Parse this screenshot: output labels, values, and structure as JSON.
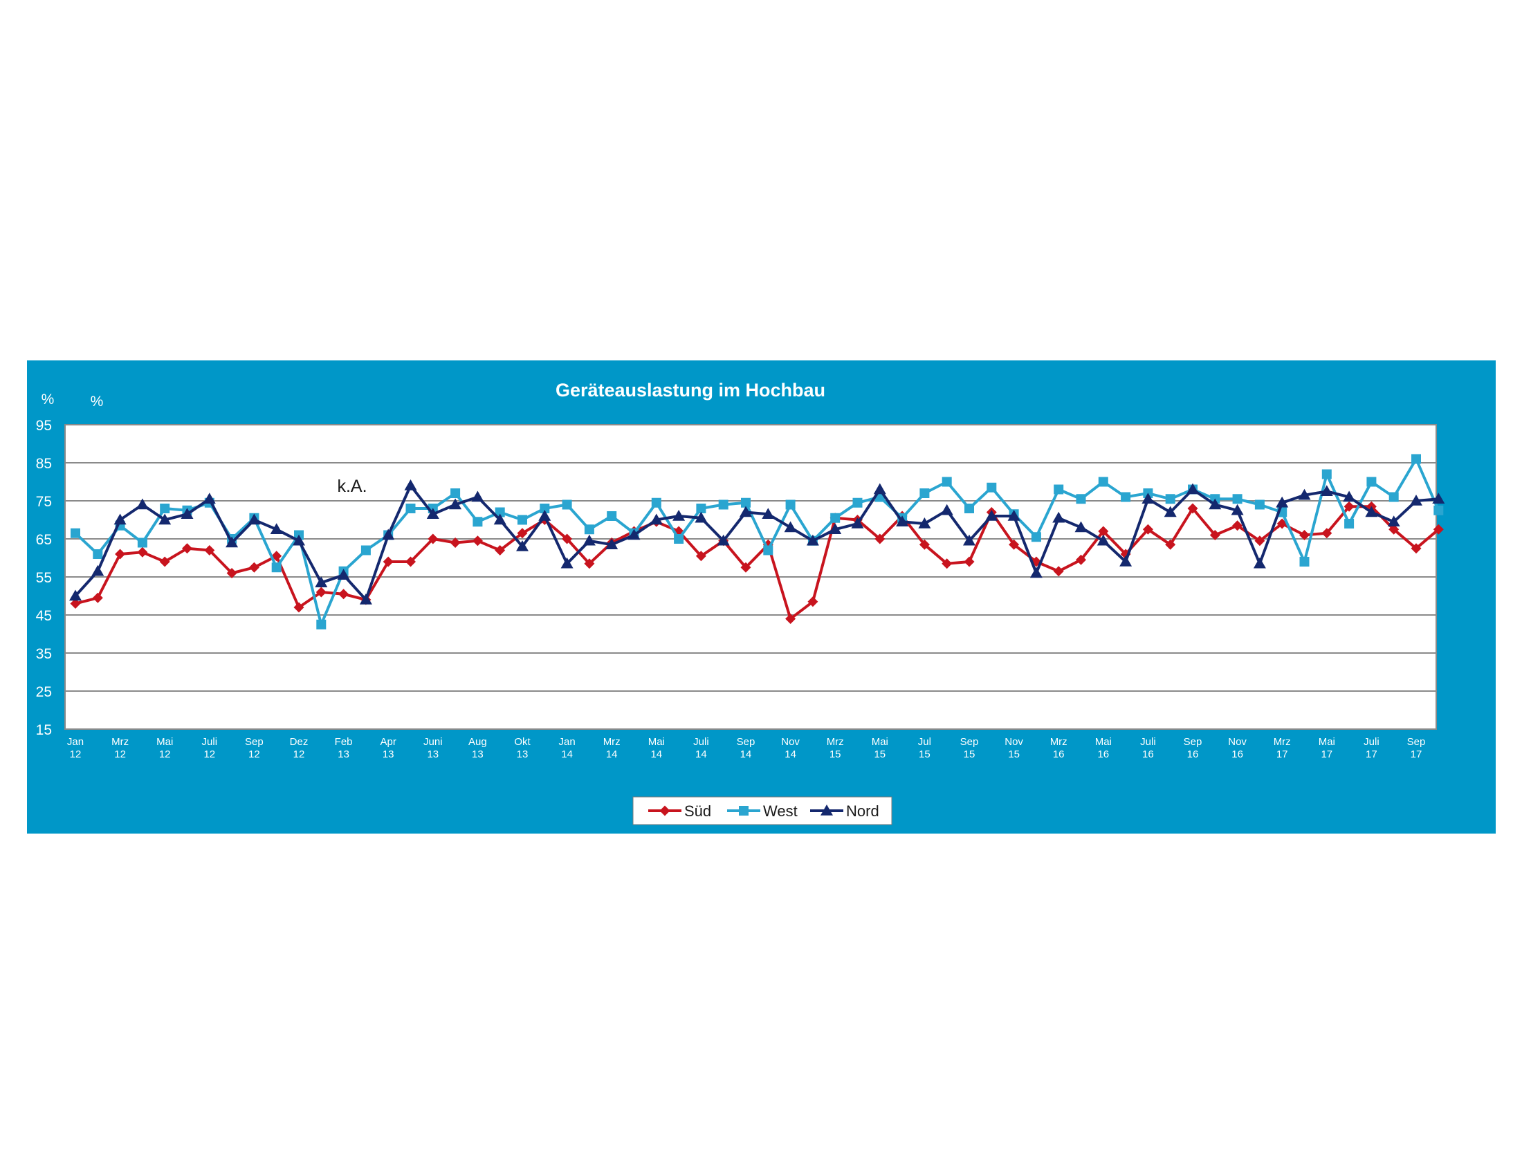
{
  "chart_data": {
    "type": "line",
    "title": "Geräteauslastung im Hochbau",
    "unit_labels": [
      "%",
      "%"
    ],
    "annotation": "k.A.",
    "ylim": [
      15,
      95
    ],
    "y_ticks": [
      15,
      25,
      35,
      45,
      55,
      65,
      75,
      85,
      95
    ],
    "grid": true,
    "legend_position": "bottom-center",
    "x_tick_labels": [
      [
        "Jan",
        "12"
      ],
      [
        "Mrz",
        "12"
      ],
      [
        "Mai",
        "12"
      ],
      [
        "Juli",
        "12"
      ],
      [
        "Sep",
        "12"
      ],
      [
        "Dez",
        "12"
      ],
      [
        "Feb",
        "13"
      ],
      [
        "Apr",
        "13"
      ],
      [
        "Juni",
        "13"
      ],
      [
        "Aug",
        "13"
      ],
      [
        "Okt",
        "13"
      ],
      [
        "Jan",
        "14"
      ],
      [
        "Mrz",
        "14"
      ],
      [
        "Mai",
        "14"
      ],
      [
        "Juli",
        "14"
      ],
      [
        "Sep",
        "14"
      ],
      [
        "Nov",
        "14"
      ],
      [
        "Mrz",
        "15"
      ],
      [
        "Mai",
        "15"
      ],
      [
        "Jul",
        "15"
      ],
      [
        "Sep",
        "15"
      ],
      [
        "Nov",
        "15"
      ],
      [
        "Mrz",
        "16"
      ],
      [
        "Mai",
        "16"
      ],
      [
        "Juli",
        "16"
      ],
      [
        "Sep",
        "16"
      ],
      [
        "Nov",
        "16"
      ],
      [
        "Mrz",
        "17"
      ],
      [
        "Mai",
        "17"
      ],
      [
        "Juli",
        "17"
      ],
      [
        "Sep",
        "17"
      ]
    ],
    "point_count": 62,
    "series": [
      {
        "name": "Süd",
        "color": "#c8141e",
        "marker": "diamond",
        "values": [
          48,
          49.5,
          61,
          61.5,
          59,
          62.5,
          62,
          56,
          57.5,
          60.5,
          47,
          51,
          50.5,
          49,
          59,
          59,
          65,
          64,
          64.5,
          62,
          66.5,
          70,
          65,
          58.5,
          64,
          67,
          69.5,
          67,
          60.5,
          64.5,
          57.5,
          63.5,
          44,
          48.5,
          70.5,
          70,
          65,
          71,
          63.5,
          58.5,
          59,
          72,
          63.5,
          59,
          56.5,
          59.5,
          67,
          61,
          67.5,
          63.5,
          73,
          66,
          68.5,
          64.5,
          69,
          66,
          66.5,
          73.5,
          73.5,
          67.5,
          62.5,
          67.5
        ]
      },
      {
        "name": "West",
        "color": "#2aa5d0",
        "marker": "square",
        "values": [
          66.5,
          61,
          68.5,
          64,
          73,
          72.5,
          74.5,
          65,
          70.5,
          57.5,
          66,
          42.5,
          56.5,
          62,
          66,
          73,
          73,
          77,
          69.5,
          72,
          70,
          73,
          74,
          67.5,
          71,
          66.5,
          74.5,
          65,
          73,
          74,
          74.5,
          62,
          74,
          64.5,
          70.5,
          74.5,
          76,
          70.5,
          77,
          80,
          73,
          78.5,
          71.5,
          65.5,
          78,
          75.5,
          80,
          76,
          77,
          75.5,
          78,
          75.5,
          75.5,
          74,
          72,
          59,
          82,
          69,
          80,
          76,
          86,
          72.5
        ]
      },
      {
        "name": "Nord",
        "color": "#14286e",
        "marker": "triangle",
        "values": [
          50,
          56.5,
          70,
          74,
          70,
          71.5,
          75.5,
          64,
          70,
          67.5,
          64.5,
          53.5,
          55.5,
          49,
          66,
          79,
          71.5,
          74,
          76,
          70,
          63,
          71,
          58.5,
          64.5,
          63.5,
          66,
          70,
          71,
          70.5,
          64.5,
          72,
          71.5,
          68,
          64.5,
          67.5,
          69,
          78,
          69.5,
          69,
          72.5,
          64.5,
          71,
          71,
          56,
          70.5,
          68,
          64.5,
          59,
          75.5,
          72,
          78,
          74,
          72.5,
          58.5,
          74.5,
          76.5,
          77.5,
          76,
          72,
          69.5,
          75,
          75.5
        ]
      }
    ]
  }
}
